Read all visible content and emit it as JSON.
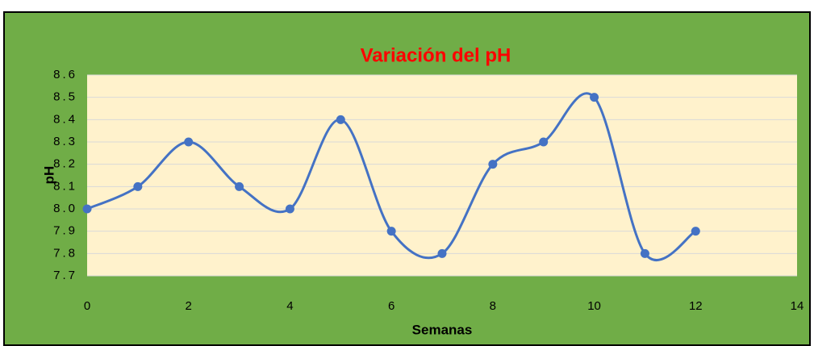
{
  "chart_data": {
    "type": "line",
    "title": "Variación del pH",
    "x_label": "Semanas",
    "y_label": "pH",
    "x": [
      0,
      1,
      2,
      3,
      4,
      5,
      6,
      7,
      8,
      9,
      10,
      11,
      12
    ],
    "series": [
      {
        "name": "pH",
        "color": "#4472c4",
        "values": [
          8.0,
          8.1,
          8.3,
          8.1,
          8.0,
          8.4,
          7.9,
          7.8,
          8.2,
          8.3,
          8.5,
          7.8,
          7.9
        ]
      }
    ],
    "xlim": [
      0,
      14
    ],
    "xticks": [
      0,
      2,
      4,
      6,
      8,
      10,
      12,
      14
    ],
    "ylim": [
      7.7,
      8.6
    ],
    "yticks": [
      7.7,
      7.8,
      7.9,
      {
        "value": 8,
        "label": "8.0"
      },
      8.1,
      8.2,
      8.3,
      8.4,
      8.5,
      8.6
    ],
    "grid": true,
    "smooth": true
  }
}
